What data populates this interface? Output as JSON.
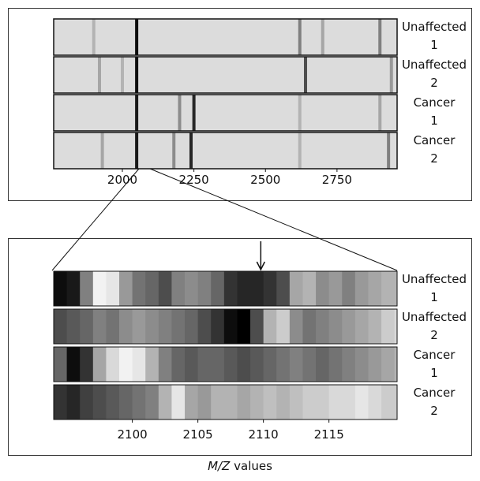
{
  "chart_data": [
    {
      "type": "band-strips",
      "xlim": [
        1760,
        2960
      ],
      "xticks": [
        2000,
        2250,
        2500,
        2750
      ],
      "rows": [
        {
          "name": "Unaffected",
          "number": 1,
          "bands": [
            {
              "x": 2050,
              "d": 0.95
            },
            {
              "x": 1900,
              "d": 0.3
            },
            {
              "x": 2620,
              "d": 0.5
            },
            {
              "x": 2700,
              "d": 0.35
            },
            {
              "x": 2900,
              "d": 0.5
            }
          ]
        },
        {
          "name": "Unaffected",
          "number": 2,
          "bands": [
            {
              "x": 2050,
              "d": 0.95
            },
            {
              "x": 1920,
              "d": 0.35
            },
            {
              "x": 2000,
              "d": 0.3
            },
            {
              "x": 2640,
              "d": 0.7
            },
            {
              "x": 2940,
              "d": 0.4
            }
          ]
        },
        {
          "name": "Cancer",
          "number": 1,
          "bands": [
            {
              "x": 2050,
              "d": 0.9
            },
            {
              "x": 2200,
              "d": 0.45
            },
            {
              "x": 2250,
              "d": 0.85
            },
            {
              "x": 2620,
              "d": 0.3
            },
            {
              "x": 2900,
              "d": 0.35
            }
          ]
        },
        {
          "name": "Cancer",
          "number": 2,
          "bands": [
            {
              "x": 2050,
              "d": 0.9
            },
            {
              "x": 1930,
              "d": 0.35
            },
            {
              "x": 2180,
              "d": 0.45
            },
            {
              "x": 2240,
              "d": 0.85
            },
            {
              "x": 2620,
              "d": 0.3
            },
            {
              "x": 2930,
              "d": 0.5
            }
          ]
        }
      ]
    },
    {
      "type": "profile-strips",
      "xlim": [
        2094,
        2120.2
      ],
      "xticks": [
        2100,
        2105,
        2110,
        2115
      ],
      "arrow_x": 2109.8,
      "x": [
        2094,
        2095,
        2096,
        2097,
        2098,
        2099,
        2100,
        2101,
        2102,
        2103,
        2104,
        2105,
        2106,
        2107,
        2108,
        2109,
        2110,
        2111,
        2112,
        2113,
        2114,
        2115,
        2116,
        2117,
        2118,
        2119,
        2120
      ],
      "rows": [
        {
          "name": "Unaffected",
          "number": 1,
          "values": [
            0.95,
            0.9,
            0.5,
            0.05,
            0.1,
            0.4,
            0.55,
            0.6,
            0.7,
            0.5,
            0.45,
            0.5,
            0.6,
            0.8,
            0.85,
            0.85,
            0.8,
            0.7,
            0.35,
            0.3,
            0.45,
            0.4,
            0.5,
            0.4,
            0.35,
            0.3,
            0.3
          ]
        },
        {
          "name": "Unaffected",
          "number": 2,
          "values": [
            0.7,
            0.65,
            0.6,
            0.5,
            0.55,
            0.45,
            0.4,
            0.45,
            0.5,
            0.55,
            0.6,
            0.7,
            0.8,
            0.95,
            1,
            0.7,
            0.3,
            0.2,
            0.45,
            0.55,
            0.5,
            0.45,
            0.4,
            0.35,
            0.3,
            0.2,
            0.15
          ]
        },
        {
          "name": "Cancer",
          "number": 1,
          "values": [
            0.6,
            0.95,
            0.8,
            0.35,
            0.15,
            0.05,
            0.1,
            0.3,
            0.5,
            0.6,
            0.65,
            0.6,
            0.6,
            0.65,
            0.7,
            0.65,
            0.6,
            0.55,
            0.5,
            0.55,
            0.6,
            0.55,
            0.5,
            0.45,
            0.4,
            0.35,
            0.3
          ]
        },
        {
          "name": "Cancer",
          "number": 2,
          "values": [
            0.8,
            0.85,
            0.75,
            0.7,
            0.65,
            0.6,
            0.55,
            0.5,
            0.3,
            0.1,
            0.35,
            0.4,
            0.3,
            0.3,
            0.35,
            0.3,
            0.25,
            0.3,
            0.25,
            0.2,
            0.2,
            0.15,
            0.15,
            0.1,
            0.15,
            0.2,
            0.2
          ]
        }
      ],
      "xlabel_italic": "M/Z",
      "xlabel": "values"
    }
  ]
}
